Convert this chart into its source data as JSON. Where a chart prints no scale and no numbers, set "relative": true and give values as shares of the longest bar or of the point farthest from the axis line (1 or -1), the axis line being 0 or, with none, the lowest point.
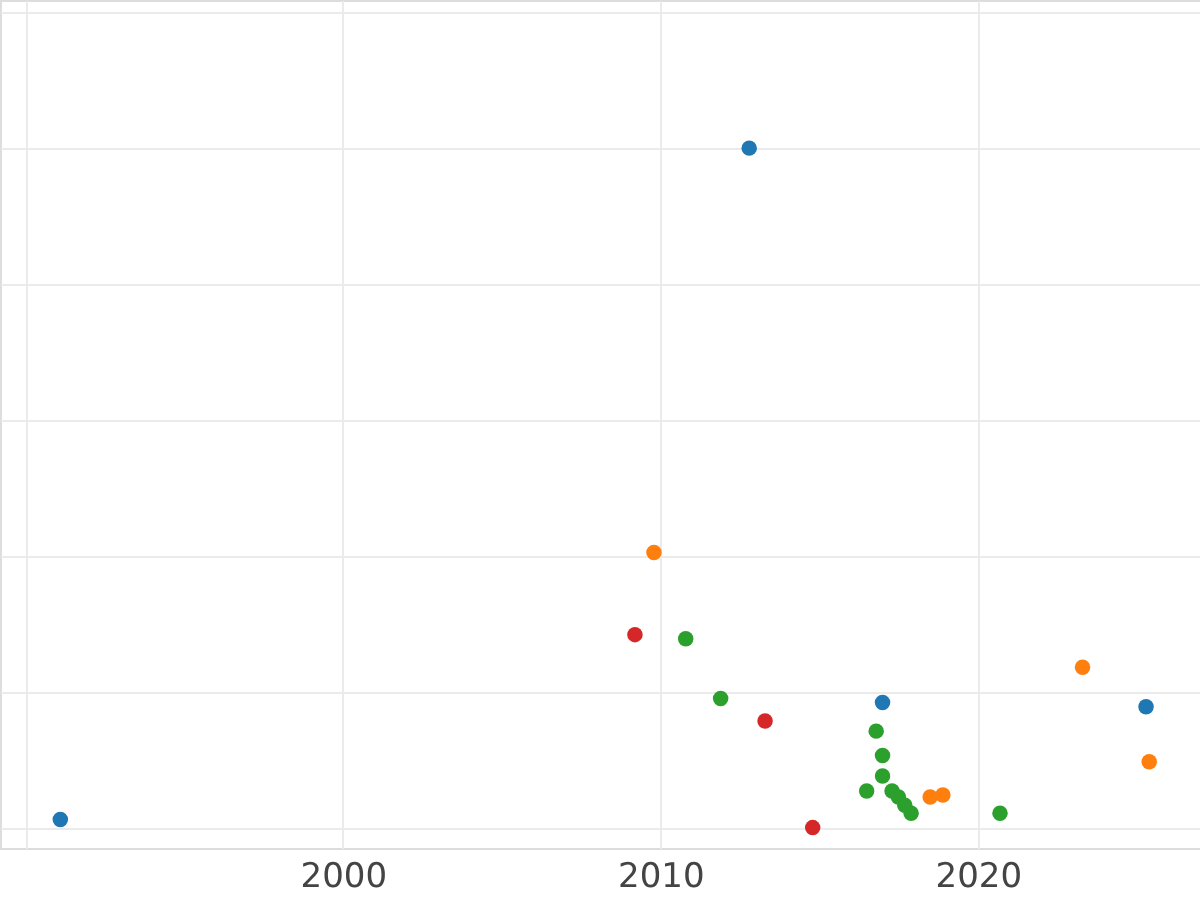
{
  "chart_data": {
    "type": "scatter",
    "relative": true,
    "marker": "circle",
    "grid": true,
    "tick_labels": "x",
    "xlim": [
      1989.2,
      2027.0
    ],
    "xticks": [
      {
        "value": 1990,
        "label": null
      },
      2000,
      2010,
      2020
    ],
    "series": [
      {
        "color": "#1f77b4",
        "x": [
          1991.1,
          2012.8,
          2017.0,
          2025.3
        ],
        "values": [
          0.012,
          1,
          0.184,
          0.178
        ]
      },
      {
        "color": "#ff7f0e",
        "x": [
          2009.8,
          2018.5,
          2018.9,
          2023.3,
          2025.4
        ],
        "values": [
          0.405,
          0.045,
          0.048,
          0.236,
          0.097
        ]
      },
      {
        "color": "#2ca02c",
        "x": [
          2010.8,
          2011.9,
          2016.8,
          2017.0,
          2017.0,
          2016.5,
          2017.3,
          2017.5,
          2017.7,
          2017.9,
          2020.7
        ],
        "values": [
          0.278,
          0.19,
          0.142,
          0.106,
          0.076,
          0.054,
          0.054,
          0.045,
          0.033,
          0.021,
          0.021
        ]
      },
      {
        "color": "#d62728",
        "x": [
          2009.2,
          2013.3,
          2014.8
        ],
        "values": [
          0.284,
          0.157,
          0
        ]
      }
    ]
  }
}
